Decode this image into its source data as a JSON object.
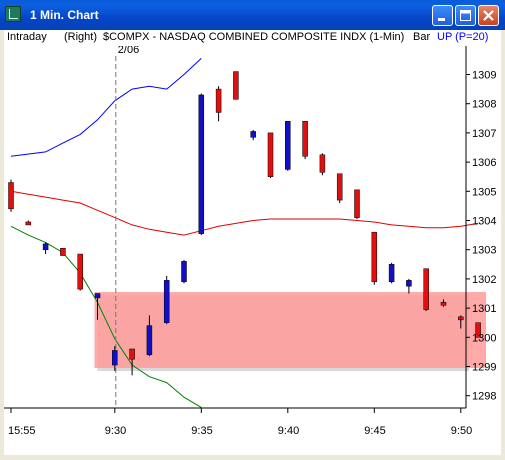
{
  "window": {
    "title": "1 Min. Chart",
    "icon": "chart-app-icon",
    "controls": [
      "minimize-icon",
      "maximize-icon",
      "close-icon"
    ]
  },
  "header": {
    "mode": "Intraday",
    "axis_side": "(Right)",
    "symbol": "$COMPX - NASDAQ COMBINED COMPOSITE INDX (1-Min)",
    "bar_type": "Bar",
    "indicator": "UP (P=20)"
  },
  "date_marker": "2/06",
  "colors": {
    "up_bar": "#1010c8",
    "down_bar": "#e01010",
    "upper_band": "#0000ff",
    "middle_band": "#e00000",
    "lower_band": "#008000",
    "highlight_zone": "#ff9a9a",
    "indicator_text": "#0000ff"
  },
  "chart_data": {
    "type": "candlestick",
    "title": "",
    "y_ticks": [
      "1298",
      "1299",
      "1300",
      "1301",
      "1302",
      "1303",
      "1304",
      "1305",
      "1306",
      "1307",
      "1308",
      "1309"
    ],
    "x_ticks": [
      "15:55",
      "9:30",
      "9:35",
      "9:40",
      "9:45",
      "9:50"
    ],
    "ylim": [
      1297.5,
      1309.5
    ],
    "highlight_zone": {
      "y_low": 1298.95,
      "y_high": 1301.55
    },
    "bars": [
      {
        "time": "15:55",
        "open": 1305.3,
        "high": 1305.4,
        "low": 1304.3,
        "close": 1304.4,
        "dir": "down"
      },
      {
        "time": "15:56",
        "open": 1303.95,
        "high": 1304.0,
        "low": 1303.85,
        "close": 1303.9,
        "dir": "down"
      },
      {
        "time": "15:57",
        "open": 1303.0,
        "high": 1303.25,
        "low": 1302.85,
        "close": 1303.2,
        "dir": "up"
      },
      {
        "time": "15:58",
        "open": 1303.05,
        "high": 1303.05,
        "low": 1302.8,
        "close": 1302.8,
        "dir": "down"
      },
      {
        "time": "15:59",
        "open": 1302.85,
        "high": 1302.85,
        "low": 1301.6,
        "close": 1301.65,
        "dir": "down"
      },
      {
        "time": "16:00",
        "open": 1301.5,
        "high": 1301.5,
        "low": 1300.6,
        "close": 1301.35,
        "dir": "up"
      },
      {
        "time": "9:30",
        "open": 1299.05,
        "high": 1299.7,
        "low": 1298.85,
        "close": 1299.55,
        "dir": "up"
      },
      {
        "time": "9:31",
        "open": 1299.6,
        "high": 1299.6,
        "low": 1298.7,
        "close": 1299.25,
        "dir": "down"
      },
      {
        "time": "9:32",
        "open": 1299.4,
        "high": 1300.75,
        "low": 1299.35,
        "close": 1300.4,
        "dir": "up"
      },
      {
        "time": "9:33",
        "open": 1300.5,
        "high": 1302.1,
        "low": 1300.45,
        "close": 1301.95,
        "dir": "up"
      },
      {
        "time": "9:34",
        "open": 1301.9,
        "high": 1302.65,
        "low": 1301.85,
        "close": 1302.6,
        "dir": "up"
      },
      {
        "time": "9:35",
        "open": 1303.55,
        "high": 1308.35,
        "low": 1303.5,
        "close": 1308.3,
        "dir": "up"
      },
      {
        "time": "9:36",
        "open": 1308.5,
        "high": 1308.6,
        "low": 1307.4,
        "close": 1307.7,
        "dir": "down"
      },
      {
        "time": "9:37",
        "open": 1309.1,
        "high": 1309.1,
        "low": 1308.15,
        "close": 1308.15,
        "dir": "down"
      },
      {
        "time": "9:38",
        "open": 1307.05,
        "high": 1307.1,
        "low": 1306.75,
        "close": 1306.85,
        "dir": "up"
      },
      {
        "time": "9:39",
        "open": 1307.0,
        "high": 1307.0,
        "low": 1305.45,
        "close": 1305.5,
        "dir": "down"
      },
      {
        "time": "9:40",
        "open": 1305.75,
        "high": 1307.4,
        "low": 1305.7,
        "close": 1307.4,
        "dir": "up"
      },
      {
        "time": "9:41",
        "open": 1307.4,
        "high": 1307.4,
        "low": 1306.1,
        "close": 1306.2,
        "dir": "down"
      },
      {
        "time": "9:42",
        "open": 1306.25,
        "high": 1306.3,
        "low": 1305.55,
        "close": 1305.65,
        "dir": "down"
      },
      {
        "time": "9:43",
        "open": 1305.6,
        "high": 1305.6,
        "low": 1304.6,
        "close": 1304.7,
        "dir": "down"
      },
      {
        "time": "9:44",
        "open": 1305.05,
        "high": 1305.05,
        "low": 1304.05,
        "close": 1304.1,
        "dir": "down"
      },
      {
        "time": "9:45",
        "open": 1303.6,
        "high": 1303.6,
        "low": 1301.8,
        "close": 1301.9,
        "dir": "down"
      },
      {
        "time": "9:46",
        "open": 1301.9,
        "high": 1302.55,
        "low": 1301.85,
        "close": 1302.5,
        "dir": "up"
      },
      {
        "time": "9:47",
        "open": 1301.75,
        "high": 1302.0,
        "low": 1301.5,
        "close": 1301.95,
        "dir": "up"
      },
      {
        "time": "9:48",
        "open": 1302.35,
        "high": 1302.35,
        "low": 1300.9,
        "close": 1300.95,
        "dir": "down"
      },
      {
        "time": "9:49",
        "open": 1301.2,
        "high": 1301.3,
        "low": 1301.05,
        "close": 1301.1,
        "dir": "down"
      },
      {
        "time": "9:50",
        "open": 1300.7,
        "high": 1300.75,
        "low": 1300.3,
        "close": 1300.6,
        "dir": "down"
      },
      {
        "time": "9:51",
        "open": 1300.5,
        "high": 1300.5,
        "low": 1300.0,
        "close": 1300.0,
        "dir": "down"
      }
    ],
    "upper_band": [
      {
        "t": "15:55",
        "v": 1306.2
      },
      {
        "t": "15:57",
        "v": 1306.35
      },
      {
        "t": "15:58",
        "v": 1306.65
      },
      {
        "t": "15:59",
        "v": 1306.95
      },
      {
        "t": "16:00",
        "v": 1307.45
      },
      {
        "t": "9:30",
        "v": 1308.1
      },
      {
        "t": "9:31",
        "v": 1308.5
      },
      {
        "t": "9:32",
        "v": 1308.6
      },
      {
        "t": "9:33",
        "v": 1308.5
      },
      {
        "t": "9:34",
        "v": 1309.0
      },
      {
        "t": "9:35",
        "v": 1309.55
      }
    ],
    "middle_band": [
      {
        "t": "15:55",
        "v": 1305.0
      },
      {
        "t": "15:56",
        "v": 1304.9
      },
      {
        "t": "15:57",
        "v": 1304.8
      },
      {
        "t": "15:58",
        "v": 1304.7
      },
      {
        "t": "15:59",
        "v": 1304.6
      },
      {
        "t": "16:00",
        "v": 1304.35
      },
      {
        "t": "9:30",
        "v": 1304.1
      },
      {
        "t": "9:31",
        "v": 1303.85
      },
      {
        "t": "9:32",
        "v": 1303.7
      },
      {
        "t": "9:33",
        "v": 1303.6
      },
      {
        "t": "9:34",
        "v": 1303.5
      },
      {
        "t": "9:35",
        "v": 1303.65
      },
      {
        "t": "9:36",
        "v": 1303.8
      },
      {
        "t": "9:37",
        "v": 1303.9
      },
      {
        "t": "9:38",
        "v": 1304.0
      },
      {
        "t": "9:39",
        "v": 1304.05
      },
      {
        "t": "9:40",
        "v": 1304.05
      },
      {
        "t": "9:41",
        "v": 1304.05
      },
      {
        "t": "9:42",
        "v": 1304.05
      },
      {
        "t": "9:43",
        "v": 1304.05
      },
      {
        "t": "9:44",
        "v": 1304.0
      },
      {
        "t": "9:45",
        "v": 1303.95
      },
      {
        "t": "9:46",
        "v": 1303.85
      },
      {
        "t": "9:47",
        "v": 1303.8
      },
      {
        "t": "9:48",
        "v": 1303.75
      },
      {
        "t": "9:49",
        "v": 1303.75
      },
      {
        "t": "9:50",
        "v": 1303.8
      },
      {
        "t": "9:51",
        "v": 1303.9
      }
    ],
    "lower_band": [
      {
        "t": "15:55",
        "v": 1303.8
      },
      {
        "t": "15:56",
        "v": 1303.5
      },
      {
        "t": "15:57",
        "v": 1303.25
      },
      {
        "t": "15:58",
        "v": 1302.9
      },
      {
        "t": "15:59",
        "v": 1302.2
      },
      {
        "t": "16:00",
        "v": 1301.2
      },
      {
        "t": "9:30",
        "v": 1299.95
      },
      {
        "t": "9:31",
        "v": 1299.05
      },
      {
        "t": "9:32",
        "v": 1298.65
      },
      {
        "t": "9:33",
        "v": 1298.45
      },
      {
        "t": "9:34",
        "v": 1297.95
      },
      {
        "t": "9:35",
        "v": 1297.6
      }
    ]
  }
}
